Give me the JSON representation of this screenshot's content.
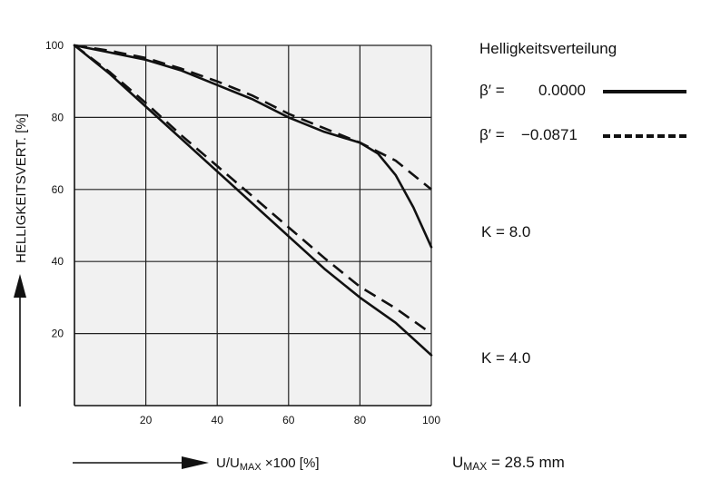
{
  "chart_data": {
    "type": "line",
    "legend_title": "Helligkeitsverteilung",
    "xlabel": {
      "main": "U/U",
      "sub": "MAX",
      "rest": " ×100 [%]"
    },
    "ylabel": "HELLIGKEITSVERT. [%]",
    "xlim": [
      0,
      100
    ],
    "ylim": [
      0,
      100
    ],
    "xticks": [
      20,
      40,
      60,
      80,
      100
    ],
    "yticks": [
      20,
      40,
      60,
      80,
      100
    ],
    "grid": true,
    "series": [
      {
        "name": "β′ = 0.0000",
        "label_beta": "β′ =",
        "label_value": "0.0000",
        "style": "solid",
        "group": "K = 8.0",
        "x": [
          0,
          10,
          20,
          30,
          40,
          50,
          60,
          70,
          80,
          85,
          90,
          95,
          100
        ],
        "y": [
          100,
          98,
          96,
          93,
          89,
          85,
          80,
          76,
          73,
          70,
          64,
          55,
          44
        ]
      },
      {
        "name": "β′ = −0.0871",
        "label_beta": "β′ =",
        "label_value": "−0.0871",
        "style": "dashed",
        "group": "K = 8.0",
        "x": [
          0,
          10,
          20,
          30,
          40,
          50,
          60,
          70,
          80,
          90,
          100
        ],
        "y": [
          100,
          98.5,
          96.5,
          93.5,
          90,
          86,
          81,
          77,
          73,
          68,
          60
        ]
      },
      {
        "name": "K 4.0 solid",
        "style": "solid",
        "group": "K = 4.0",
        "x": [
          0,
          10,
          20,
          30,
          40,
          50,
          60,
          70,
          80,
          90,
          100
        ],
        "y": [
          100,
          92,
          83,
          74,
          65,
          56,
          47,
          38,
          30,
          23,
          14
        ]
      },
      {
        "name": "K 4.0 dashed",
        "style": "dashed",
        "group": "K = 4.0",
        "x": [
          0,
          10,
          20,
          30,
          40,
          50,
          60,
          70,
          80,
          90,
          100
        ],
        "y": [
          100,
          92.5,
          84,
          75,
          66.5,
          58,
          49.5,
          41,
          33,
          27,
          20
        ]
      }
    ],
    "annotations": {
      "k8": "K = 8.0",
      "k4": "K = 4.0",
      "umax": {
        "main": "U",
        "sub": "MAX",
        "rest": " = 28.5 mm"
      }
    }
  }
}
